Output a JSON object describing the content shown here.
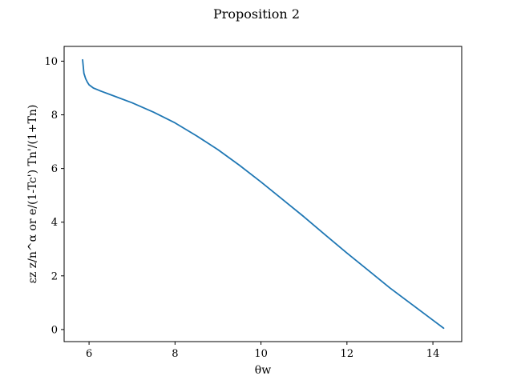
{
  "chart_data": {
    "type": "line",
    "title": "Proposition 2",
    "xlabel": "θw",
    "ylabel": "εz z/n^α or e/(1-Tc') Tn'/(1+Tn)",
    "xlim": [
      5.42,
      14.67
    ],
    "ylim": [
      -0.45,
      10.55
    ],
    "xticks": [
      6,
      8,
      10,
      12,
      14
    ],
    "yticks": [
      0,
      2,
      4,
      6,
      8,
      10
    ],
    "grid": false,
    "colors": {
      "series": "#1f77b4"
    },
    "series": [
      {
        "x": [
          5.85,
          5.88,
          5.92,
          5.96,
          6.0,
          6.1,
          6.25,
          6.5,
          7.0,
          7.5,
          8.0,
          8.5,
          9.0,
          9.5,
          10.0,
          10.5,
          11.0,
          11.5,
          12.0,
          12.5,
          13.0,
          13.5,
          14.0,
          14.25
        ],
        "y": [
          10.05,
          9.55,
          9.35,
          9.22,
          9.12,
          9.0,
          8.9,
          8.75,
          8.45,
          8.1,
          7.7,
          7.22,
          6.7,
          6.12,
          5.5,
          4.85,
          4.2,
          3.52,
          2.85,
          2.2,
          1.55,
          0.95,
          0.35,
          0.05
        ]
      }
    ]
  }
}
